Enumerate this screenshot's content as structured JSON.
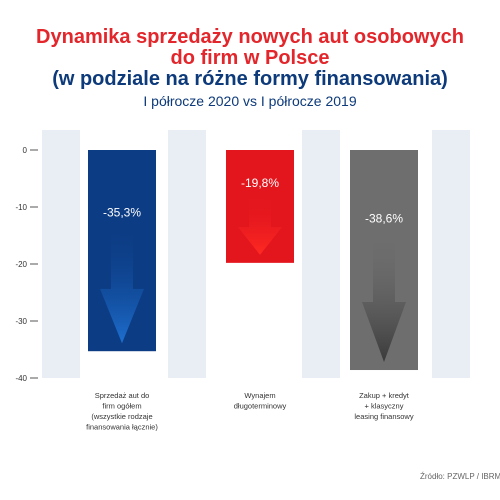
{
  "header": {
    "title_line1": "Dynamika sprzedaży nowych aut osobowych",
    "title_line2": "do firm w Polsce",
    "title_line3": "(w podziale na różne formy finansowania)",
    "subtitle": "I półrocze 2020 vs I półrocze 2019"
  },
  "source": "Źródło: PZWLP / IBRM",
  "chart_data": {
    "type": "bar",
    "ylim": [
      -40,
      0
    ],
    "yticks": [
      0,
      -10,
      -20,
      -30,
      -40
    ],
    "grid": false,
    "legend": "none",
    "categories": [
      [
        "Sprzedaż aut do",
        "firm ogółem",
        "(wszystkie rodzaje",
        "finansowania łącznie)"
      ],
      [
        "Wynajem",
        "długoterminowy"
      ],
      [
        "Zakup + kredyt",
        "+ klasyczny",
        "leasing finansowy"
      ]
    ],
    "values": [
      -35.3,
      -19.8,
      -38.6
    ],
    "value_labels": [
      "-35,3%",
      "-19,8%",
      "-38,6%"
    ],
    "colors": [
      "#0c3c84",
      "#e3161e",
      "#6e6e6e"
    ],
    "arrow_colors": [
      "#1e6fd0",
      "#ff2a22",
      "#3a3a3a"
    ],
    "background_stripe_color": "#e9eef5"
  }
}
